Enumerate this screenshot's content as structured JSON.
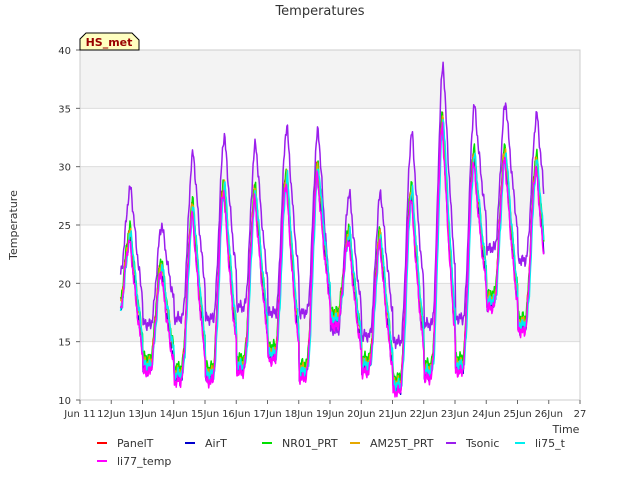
{
  "chart_data": {
    "type": "line",
    "title": "Temperatures",
    "xlabel": "Time",
    "ylabel": "Temperature",
    "station_label": "HS_met",
    "xlim": [
      11,
      27
    ],
    "ylim": [
      10,
      40
    ],
    "x_ticks": [
      11,
      12,
      13,
      14,
      15,
      16,
      17,
      18,
      19,
      20,
      21,
      22,
      23,
      24,
      25,
      26,
      27
    ],
    "x_tick_labels": [
      "Jun 11",
      "12Jun",
      "13Jun",
      "14Jun",
      "15Jun",
      "16Jun",
      "17Jun",
      "18Jun",
      "19Jun",
      "20Jun",
      "21Jun",
      "22Jun",
      "23Jun",
      "24Jun",
      "25Jun",
      "26Jun",
      "27"
    ],
    "y_ticks": [
      10,
      15,
      20,
      25,
      30,
      35,
      40
    ],
    "y_tick_labels": [
      "10",
      "15",
      "20",
      "25",
      "30",
      "35",
      "40"
    ],
    "bands": [
      [
        15,
        20
      ],
      [
        25,
        30
      ],
      [
        35,
        40
      ]
    ],
    "daily_min": [
      17.5,
      13.0,
      12.2,
      12.2,
      13.0,
      14.0,
      12.5,
      17.0,
      13.0,
      11.3,
      12.5,
      13.0,
      18.5,
      16.5,
      17.0
    ],
    "daily_max": [
      24.2,
      21.5,
      26.5,
      28.5,
      27.8,
      29.2,
      29.8,
      24.3,
      24.0,
      28.0,
      34.0,
      31.0,
      31.2,
      30.5
    ],
    "start_day": 12.3,
    "end_day": 25.85,
    "series": [
      {
        "name": "PanelT",
        "color": "#ff0000",
        "offset": 0.3,
        "phase": 0.01
      },
      {
        "name": "AirT",
        "color": "#0000cc",
        "offset": -0.4,
        "phase": 0.015
      },
      {
        "name": "NR01_PRT",
        "color": "#00e000",
        "offset": 0.6,
        "phase": 0.005
      },
      {
        "name": "AM25T_PRT",
        "color": "#e6a800",
        "offset": 0.2,
        "phase": 0.0
      },
      {
        "name": "Tsonic",
        "color": "#9a1eec",
        "offset": 0.0,
        "phase": -0.01
      },
      {
        "name": "li75_t",
        "color": "#00eeee",
        "offset": 0.0,
        "phase": -0.02
      },
      {
        "name": "li77_temp",
        "color": "#ff00ff",
        "offset": -0.6,
        "phase": 0.02
      }
    ],
    "tsonic_daily_min": [
      20.5,
      16.5,
      17.0,
      17.0,
      18.0,
      17.5,
      17.5,
      16.0,
      15.5,
      15.0,
      16.5,
      17.0,
      23.0,
      22.0,
      21.5
    ],
    "tsonic_daily_max": [
      28.2,
      25.0,
      31.2,
      32.7,
      32.0,
      33.5,
      33.2,
      27.8,
      27.8,
      33.0,
      38.8,
      35.3,
      35.5,
      34.5
    ]
  }
}
